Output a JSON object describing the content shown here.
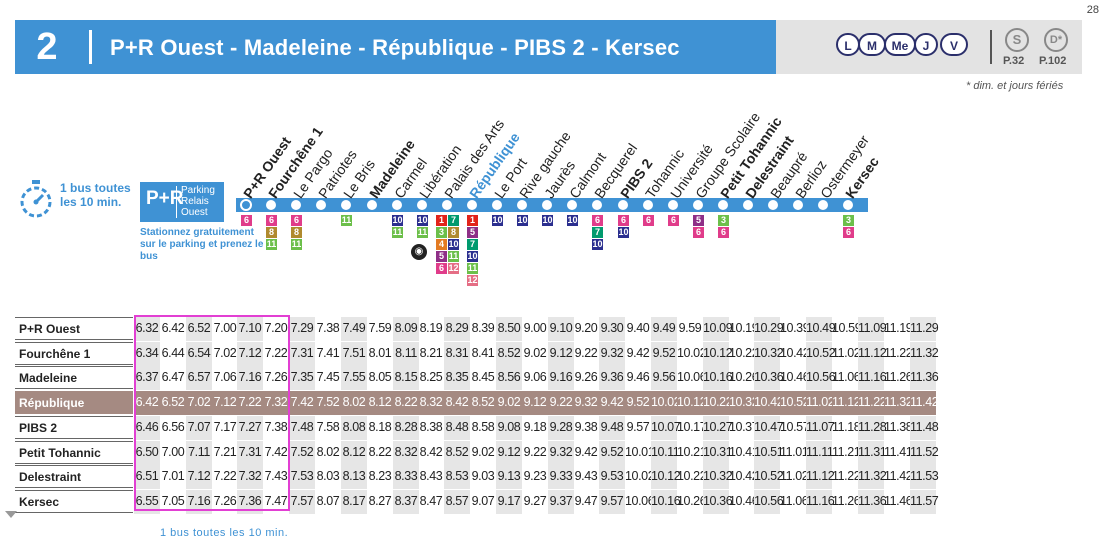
{
  "page_number": "28",
  "header": {
    "route_number": "2",
    "title": "P+R Ouest - Madeleine - République - PIBS 2 - Kersec",
    "days": [
      "L",
      "M",
      "Me",
      "J",
      "V"
    ],
    "refs": [
      {
        "badge": "S",
        "page": "P.32"
      },
      {
        "badge": "D*",
        "page": "P.102"
      }
    ],
    "footnote": "* dim. et jours fériés"
  },
  "frequency": {
    "text": "1 bus toutes les 10 min."
  },
  "park_ride": {
    "logo": "P+R",
    "words": [
      "Parking",
      "Relais",
      "Ouest"
    ],
    "caption": "Stationnez gratuitement sur le parking et prenez le bus"
  },
  "stops": [
    {
      "name": "P+R Ouest",
      "style": "bold",
      "connections": [
        [
          "6",
          "#e03c8a"
        ]
      ]
    },
    {
      "name": "Fourchêne 1",
      "style": "bold",
      "connections": [
        [
          "6",
          "#e03c8a"
        ],
        [
          "8",
          "#b08a2e"
        ],
        [
          "11",
          "#6cbf4a"
        ]
      ]
    },
    {
      "name": "Le Pargo",
      "style": "normal",
      "connections": [
        [
          "6",
          "#e03c8a"
        ],
        [
          "8",
          "#b08a2e"
        ],
        [
          "11",
          "#6cbf4a"
        ]
      ]
    },
    {
      "name": "Patriotes",
      "style": "normal",
      "connections": []
    },
    {
      "name": "Le Bris",
      "style": "normal",
      "connections": [
        [
          "11",
          "#6cbf4a"
        ]
      ]
    },
    {
      "name": "Madeleine",
      "style": "bold",
      "connections": []
    },
    {
      "name": "Carmel",
      "style": "normal",
      "connections": [
        [
          "10",
          "#2b2f8f"
        ],
        [
          "11",
          "#6cbf4a"
        ]
      ]
    },
    {
      "name": "Libération",
      "style": "normal",
      "connections": [
        [
          "10",
          "#2b2f8f"
        ],
        [
          "11",
          "#6cbf4a"
        ]
      ]
    },
    {
      "name": "Palais des Arts",
      "style": "normal",
      "connections": [
        [
          "1",
          "#e2231a"
        ],
        [
          "7",
          "#009a6e"
        ],
        [
          "3",
          "#6cbf4a"
        ],
        [
          "8",
          "#b08a2e"
        ],
        [
          "4",
          "#e37b23"
        ],
        [
          "10",
          "#2b2f8f"
        ],
        [
          "5",
          "#8e2f87"
        ],
        [
          "11",
          "#6cbf4a"
        ],
        [
          "6",
          "#e03c8a"
        ],
        [
          "12",
          "#e56e85"
        ]
      ]
    },
    {
      "name": "République",
      "style": "blue",
      "connections": [
        [
          "1",
          "#e2231a"
        ],
        [
          "5",
          "#8e2f87"
        ],
        [
          "7",
          "#009a6e"
        ],
        [
          "10",
          "#2b2f8f"
        ],
        [
          "11",
          "#6cbf4a"
        ],
        [
          "12",
          "#e56e85"
        ]
      ]
    },
    {
      "name": "Le Port",
      "style": "normal",
      "connections": [
        [
          "10",
          "#2b2f8f"
        ]
      ]
    },
    {
      "name": "Rive gauche",
      "style": "normal",
      "connections": [
        [
          "10",
          "#2b2f8f"
        ]
      ]
    },
    {
      "name": "Jaurès",
      "style": "normal",
      "connections": [
        [
          "10",
          "#2b2f8f"
        ]
      ]
    },
    {
      "name": "Calmont",
      "style": "normal",
      "connections": [
        [
          "10",
          "#2b2f8f"
        ]
      ]
    },
    {
      "name": "Becquerel",
      "style": "normal",
      "connections": [
        [
          "6",
          "#e03c8a"
        ],
        [
          "7",
          "#009a6e"
        ],
        [
          "10",
          "#2b2f8f"
        ]
      ]
    },
    {
      "name": "PIBS 2",
      "style": "bold",
      "connections": [
        [
          "6",
          "#e03c8a"
        ],
        [
          "10",
          "#2b2f8f"
        ]
      ]
    },
    {
      "name": "Tohannic",
      "style": "normal",
      "connections": [
        [
          "6",
          "#e03c8a"
        ]
      ]
    },
    {
      "name": "Université",
      "style": "normal",
      "connections": [
        [
          "6",
          "#e03c8a"
        ]
      ]
    },
    {
      "name": "Groupe Scolaire",
      "style": "normal",
      "connections": [
        [
          "5",
          "#8e2f87"
        ],
        [
          "6",
          "#e03c8a"
        ]
      ]
    },
    {
      "name": "Petit Tohannic",
      "style": "bold",
      "connections": [
        [
          "3",
          "#6cbf4a"
        ],
        [
          "6",
          "#e03c8a"
        ]
      ]
    },
    {
      "name": "Delestraint",
      "style": "bold",
      "connections": []
    },
    {
      "name": "Beaupré",
      "style": "normal",
      "connections": []
    },
    {
      "name": "Berlioz",
      "style": "normal",
      "connections": []
    },
    {
      "name": "Ostermeyer",
      "style": "normal",
      "connections": []
    },
    {
      "name": "Kersec",
      "style": "bold",
      "connections": [
        [
          "3",
          "#6cbf4a"
        ],
        [
          "6",
          "#e03c8a"
        ]
      ]
    }
  ],
  "timetable": {
    "rows": [
      {
        "stop": "P+R Ouest",
        "times": [
          "6.32",
          "6.42",
          "6.52",
          "7.00",
          "7.10",
          "7.20",
          "7.29",
          "7.38",
          "7.49",
          "7.59",
          "8.09",
          "8.19",
          "8.29",
          "8.39",
          "8.50",
          "9.00",
          "9.10",
          "9.20",
          "9.30",
          "9.40",
          "9.49",
          "9.59",
          "10.09",
          "10.19",
          "10.29",
          "10.39",
          "10.49",
          "10.59",
          "11.09",
          "11.19",
          "11.29"
        ]
      },
      {
        "stop": "Fourchêne 1",
        "times": [
          "6.34",
          "6.44",
          "6.54",
          "7.02",
          "7.12",
          "7.22",
          "7.31",
          "7.41",
          "7.51",
          "8.01",
          "8.11",
          "8.21",
          "8.31",
          "8.41",
          "8.52",
          "9.02",
          "9.12",
          "9.22",
          "9.32",
          "9.42",
          "9.52",
          "10.02",
          "10.12",
          "10.22",
          "10.32",
          "10.42",
          "10.52",
          "11.02",
          "11.12",
          "11.22",
          "11.32"
        ]
      },
      {
        "stop": "Madeleine",
        "times": [
          "6.37",
          "6.47",
          "6.57",
          "7.06",
          "7.16",
          "7.26",
          "7.35",
          "7.45",
          "7.55",
          "8.05",
          "8.15",
          "8.25",
          "8.35",
          "8.45",
          "8.56",
          "9.06",
          "9.16",
          "9.26",
          "9.36",
          "9.46",
          "9.56",
          "10.06",
          "10.16",
          "10.26",
          "10.36",
          "10.46",
          "10.56",
          "11.06",
          "11.16",
          "11.26",
          "11.36"
        ]
      },
      {
        "stop": "République",
        "highlight": true,
        "times": [
          "6.42",
          "6.52",
          "7.02",
          "7.12",
          "7.22",
          "7.32",
          "7.42",
          "7.52",
          "8.02",
          "8.12",
          "8.22",
          "8.32",
          "8.42",
          "8.52",
          "9.02",
          "9.12",
          "9.22",
          "9.32",
          "9.42",
          "9.52",
          "10.02",
          "10.12",
          "10.22",
          "10.32",
          "10.42",
          "10.52",
          "11.02",
          "11.12",
          "11.22",
          "11.32",
          "11.42"
        ]
      },
      {
        "stop": "PIBS 2",
        "times": [
          "6.46",
          "6.56",
          "7.07",
          "7.17",
          "7.27",
          "7.38",
          "7.48",
          "7.58",
          "8.08",
          "8.18",
          "8.28",
          "8.38",
          "8.48",
          "8.58",
          "9.08",
          "9.18",
          "9.28",
          "9.38",
          "9.48",
          "9.57",
          "10.07",
          "10.17",
          "10.27",
          "10.37",
          "10.47",
          "10.57",
          "11.07",
          "11.18",
          "11.28",
          "11.38",
          "11.48"
        ]
      },
      {
        "stop": "Petit Tohannic",
        "times": [
          "6.50",
          "7.00",
          "7.11",
          "7.21",
          "7.31",
          "7.42",
          "7.52",
          "8.02",
          "8.12",
          "8.22",
          "8.32",
          "8.42",
          "8.52",
          "9.02",
          "9.12",
          "9.22",
          "9.32",
          "9.42",
          "9.52",
          "10.01",
          "10.11",
          "10.21",
          "10.31",
          "10.41",
          "10.51",
          "11.01",
          "11.11",
          "11.21",
          "11.31",
          "11.41",
          "11.52"
        ]
      },
      {
        "stop": "Delestraint",
        "times": [
          "6.51",
          "7.01",
          "7.12",
          "7.22",
          "7.32",
          "7.43",
          "7.53",
          "8.03",
          "8.13",
          "8.23",
          "8.33",
          "8.43",
          "8.53",
          "9.03",
          "9.13",
          "9.23",
          "9.33",
          "9.43",
          "9.53",
          "10.02",
          "10.12",
          "10.22",
          "10.32",
          "10.42",
          "10.52",
          "11.02",
          "11.12",
          "11.22",
          "11.32",
          "11.42",
          "11.53"
        ]
      },
      {
        "stop": "Kersec",
        "times": [
          "6.55",
          "7.05",
          "7.16",
          "7.26",
          "7.36",
          "7.47",
          "7.57",
          "8.07",
          "8.17",
          "8.27",
          "8.37",
          "8.47",
          "8.57",
          "9.07",
          "9.17",
          "9.27",
          "9.37",
          "9.47",
          "9.57",
          "10.06",
          "10.16",
          "10.26",
          "10.36",
          "10.46",
          "10.56",
          "11.06",
          "11.16",
          "11.26",
          "11.36",
          "11.46",
          "11.57"
        ]
      }
    ]
  },
  "bus_caption": "1 bus toutes les 10 min."
}
